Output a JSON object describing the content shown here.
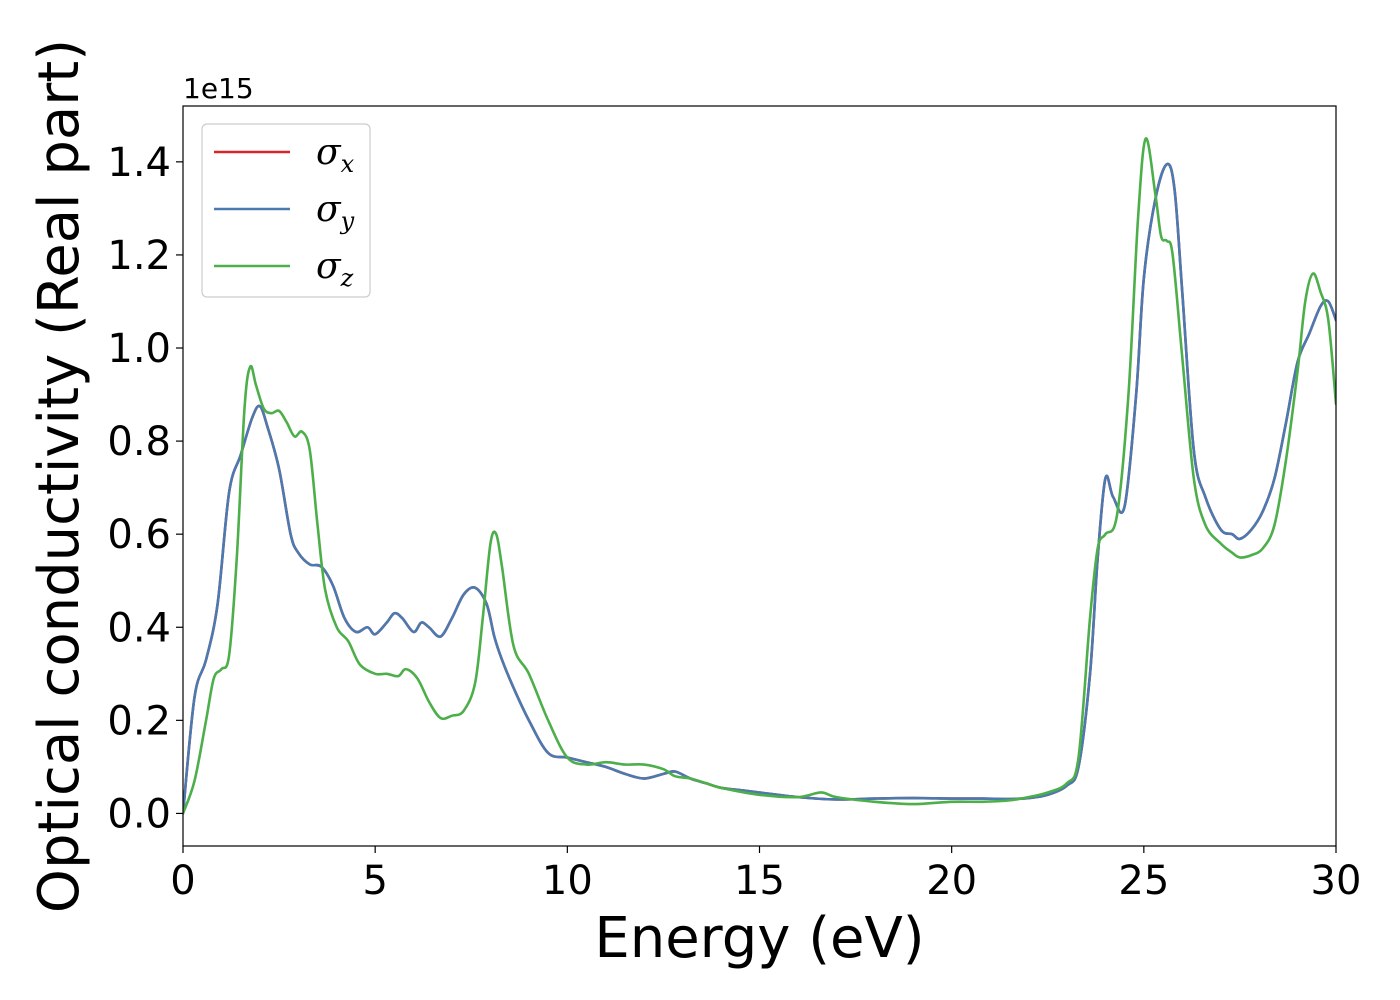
{
  "chart_data": {
    "type": "line",
    "title": "",
    "xlabel": "Energy (eV)",
    "ylabel": "Optical conductivity (Real part)",
    "y_offset_text": "1e15",
    "xlim": [
      0,
      30
    ],
    "ylim": [
      -0.07,
      1.52
    ],
    "x_ticks": [
      0,
      5,
      10,
      15,
      20,
      25,
      30
    ],
    "x_tick_labels": [
      "0",
      "5",
      "10",
      "15",
      "20",
      "25",
      "30"
    ],
    "y_ticks": [
      0.0,
      0.2,
      0.4,
      0.6,
      0.8,
      1.0,
      1.2,
      1.4
    ],
    "y_tick_labels": [
      "0.0",
      "0.2",
      "0.4",
      "0.6",
      "0.8",
      "1.0",
      "1.2",
      "1.4"
    ],
    "grid": false,
    "legend_position": "top-left",
    "series": [
      {
        "name": "σ",
        "subscript": "x",
        "color": "#d62728",
        "x": [
          0,
          0.3,
          0.6,
          0.9,
          1.2,
          1.5,
          1.8,
          2.0,
          2.2,
          2.5,
          2.8,
          3.0,
          3.3,
          3.6,
          3.9,
          4.2,
          4.5,
          4.8,
          5.0,
          5.3,
          5.5,
          5.7,
          6.0,
          6.2,
          6.4,
          6.7,
          7.0,
          7.3,
          7.6,
          7.9,
          8.1,
          8.3,
          8.6,
          9.0,
          9.5,
          10.0,
          10.5,
          11.0,
          11.5,
          12.0,
          12.5,
          12.8,
          13.2,
          13.6,
          14.0,
          14.5,
          15.0,
          16.0,
          17.0,
          18.0,
          19.0,
          20.0,
          20.8,
          21.5,
          22.0,
          22.5,
          23.0,
          23.3,
          23.6,
          23.8,
          24.0,
          24.2,
          24.5,
          24.8,
          25.0,
          25.3,
          25.6,
          25.8,
          26.0,
          26.3,
          26.6,
          27.0,
          27.3,
          27.5,
          27.8,
          28.1,
          28.4,
          28.7,
          29.0,
          29.3,
          29.6,
          29.8,
          30.0
        ],
        "values": [
          0.0,
          0.25,
          0.33,
          0.45,
          0.69,
          0.77,
          0.85,
          0.875,
          0.83,
          0.74,
          0.6,
          0.56,
          0.535,
          0.53,
          0.49,
          0.42,
          0.39,
          0.4,
          0.385,
          0.41,
          0.43,
          0.42,
          0.39,
          0.41,
          0.4,
          0.38,
          0.42,
          0.47,
          0.485,
          0.45,
          0.38,
          0.33,
          0.27,
          0.2,
          0.13,
          0.12,
          0.11,
          0.1,
          0.085,
          0.075,
          0.085,
          0.09,
          0.075,
          0.065,
          0.055,
          0.05,
          0.045,
          0.035,
          0.03,
          0.032,
          0.033,
          0.032,
          0.032,
          0.031,
          0.033,
          0.04,
          0.06,
          0.1,
          0.3,
          0.55,
          0.72,
          0.68,
          0.66,
          0.9,
          1.15,
          1.32,
          1.395,
          1.34,
          1.12,
          0.78,
          0.68,
          0.61,
          0.6,
          0.59,
          0.61,
          0.65,
          0.72,
          0.84,
          0.97,
          1.03,
          1.09,
          1.1,
          1.06
        ]
      },
      {
        "name": "σ",
        "subscript": "y",
        "color": "#4a7ab0",
        "x": [
          0,
          0.3,
          0.6,
          0.9,
          1.2,
          1.5,
          1.8,
          2.0,
          2.2,
          2.5,
          2.8,
          3.0,
          3.3,
          3.6,
          3.9,
          4.2,
          4.5,
          4.8,
          5.0,
          5.3,
          5.5,
          5.7,
          6.0,
          6.2,
          6.4,
          6.7,
          7.0,
          7.3,
          7.6,
          7.9,
          8.1,
          8.3,
          8.6,
          9.0,
          9.5,
          10.0,
          10.5,
          11.0,
          11.5,
          12.0,
          12.5,
          12.8,
          13.2,
          13.6,
          14.0,
          14.5,
          15.0,
          16.0,
          17.0,
          18.0,
          19.0,
          20.0,
          20.8,
          21.5,
          22.0,
          22.5,
          23.0,
          23.3,
          23.6,
          23.8,
          24.0,
          24.2,
          24.5,
          24.8,
          25.0,
          25.3,
          25.6,
          25.8,
          26.0,
          26.3,
          26.6,
          27.0,
          27.3,
          27.5,
          27.8,
          28.1,
          28.4,
          28.7,
          29.0,
          29.3,
          29.6,
          29.8,
          30.0
        ],
        "values": [
          0.0,
          0.25,
          0.33,
          0.45,
          0.69,
          0.77,
          0.85,
          0.875,
          0.83,
          0.74,
          0.6,
          0.56,
          0.535,
          0.53,
          0.49,
          0.42,
          0.39,
          0.4,
          0.385,
          0.41,
          0.43,
          0.42,
          0.39,
          0.41,
          0.4,
          0.38,
          0.42,
          0.47,
          0.485,
          0.45,
          0.38,
          0.33,
          0.27,
          0.2,
          0.13,
          0.12,
          0.11,
          0.1,
          0.085,
          0.075,
          0.085,
          0.09,
          0.075,
          0.065,
          0.055,
          0.05,
          0.045,
          0.035,
          0.03,
          0.032,
          0.033,
          0.032,
          0.032,
          0.031,
          0.033,
          0.04,
          0.06,
          0.1,
          0.3,
          0.55,
          0.72,
          0.68,
          0.66,
          0.9,
          1.15,
          1.32,
          1.395,
          1.34,
          1.12,
          0.78,
          0.68,
          0.61,
          0.6,
          0.59,
          0.61,
          0.65,
          0.72,
          0.84,
          0.97,
          1.03,
          1.09,
          1.1,
          1.06
        ]
      },
      {
        "name": "σ",
        "subscript": "z",
        "color": "#4daf4a",
        "x": [
          0,
          0.3,
          0.6,
          0.8,
          1.0,
          1.2,
          1.4,
          1.6,
          1.75,
          1.9,
          2.1,
          2.3,
          2.5,
          2.7,
          2.9,
          3.1,
          3.3,
          3.5,
          3.7,
          4.0,
          4.3,
          4.6,
          5.0,
          5.3,
          5.6,
          5.8,
          6.1,
          6.4,
          6.7,
          7.0,
          7.3,
          7.6,
          7.8,
          8.0,
          8.15,
          8.3,
          8.6,
          9.0,
          9.5,
          10.0,
          10.5,
          11.0,
          11.5,
          12.0,
          12.5,
          12.8,
          13.2,
          13.6,
          14.0,
          15.0,
          16.0,
          16.6,
          17.0,
          18.0,
          19.0,
          20.0,
          20.8,
          21.5,
          22.0,
          22.5,
          23.0,
          23.3,
          23.6,
          23.8,
          24.0,
          24.3,
          24.6,
          24.85,
          25.05,
          25.3,
          25.45,
          25.6,
          25.75,
          26.0,
          26.3,
          26.6,
          27.0,
          27.3,
          27.5,
          27.8,
          28.1,
          28.4,
          28.7,
          29.0,
          29.2,
          29.4,
          29.6,
          29.8,
          30.0
        ],
        "values": [
          0.0,
          0.07,
          0.2,
          0.29,
          0.31,
          0.34,
          0.55,
          0.87,
          0.96,
          0.92,
          0.87,
          0.86,
          0.865,
          0.84,
          0.81,
          0.82,
          0.78,
          0.62,
          0.48,
          0.4,
          0.37,
          0.32,
          0.3,
          0.3,
          0.295,
          0.31,
          0.29,
          0.24,
          0.205,
          0.21,
          0.22,
          0.28,
          0.42,
          0.58,
          0.6,
          0.53,
          0.36,
          0.3,
          0.2,
          0.12,
          0.105,
          0.11,
          0.105,
          0.105,
          0.095,
          0.08,
          0.075,
          0.065,
          0.055,
          0.04,
          0.035,
          0.045,
          0.035,
          0.025,
          0.02,
          0.025,
          0.025,
          0.028,
          0.035,
          0.045,
          0.065,
          0.12,
          0.42,
          0.57,
          0.6,
          0.64,
          0.9,
          1.28,
          1.45,
          1.33,
          1.24,
          1.23,
          1.2,
          0.98,
          0.72,
          0.62,
          0.58,
          0.56,
          0.55,
          0.555,
          0.57,
          0.62,
          0.76,
          0.95,
          1.1,
          1.16,
          1.12,
          1.06,
          0.88
        ]
      }
    ]
  }
}
